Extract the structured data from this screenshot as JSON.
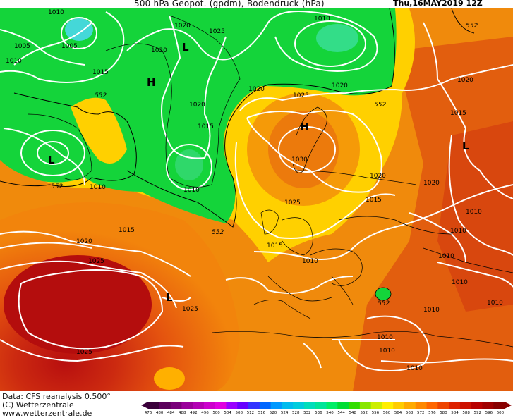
{
  "header": {
    "title": "500 hPa Geopot. (gpdm), Bodendruck (hPa)",
    "date": "Thu,16MAY2019 12Z"
  },
  "footer": {
    "data_line": "Data: CFS reanalysis 0.500°",
    "copyright": "(C) Wetterzentrale",
    "url": "www.wetterzentrale.de"
  },
  "legend": {
    "values": [
      "476",
      "480",
      "484",
      "488",
      "492",
      "496",
      "500",
      "504",
      "508",
      "512",
      "516",
      "520",
      "524",
      "528",
      "532",
      "536",
      "540",
      "544",
      "548",
      "552",
      "556",
      "560",
      "564",
      "568",
      "572",
      "576",
      "580",
      "584",
      "588",
      "592",
      "596",
      "600"
    ],
    "colors": [
      "#3a003a",
      "#5a005a",
      "#7a007a",
      "#9a009a",
      "#b300b3",
      "#cc00cc",
      "#e000e0",
      "#9900ff",
      "#6600ff",
      "#3333ff",
      "#0066ff",
      "#0099ff",
      "#00bbee",
      "#00ccdd",
      "#00ddbb",
      "#00e599",
      "#00ee66",
      "#00dd33",
      "#33dd00",
      "#88e600",
      "#ccee00",
      "#ffee00",
      "#ffcc00",
      "#ffaa00",
      "#ff8800",
      "#ff6600",
      "#ee4400",
      "#dd2200",
      "#cc1100",
      "#b80000",
      "#a00000",
      "#880000"
    ]
  },
  "map": {
    "pressure_labels": [
      {
        "text": "1010",
        "id": "p1"
      },
      {
        "text": "1005",
        "id": "p2"
      },
      {
        "text": "1005",
        "id": "p3"
      },
      {
        "text": "1010",
        "id": "p4"
      },
      {
        "text": "1015",
        "id": "p5"
      },
      {
        "text": "1020",
        "id": "p6"
      },
      {
        "text": "1020",
        "id": "p7"
      },
      {
        "text": "1025",
        "id": "p8"
      },
      {
        "text": "1020",
        "id": "p9"
      },
      {
        "text": "1015",
        "id": "p10"
      },
      {
        "text": "1020",
        "id": "p11"
      },
      {
        "text": "1025",
        "id": "p12"
      },
      {
        "text": "1010",
        "id": "p13"
      },
      {
        "text": "1020",
        "id": "p14"
      },
      {
        "text": "1020",
        "id": "p15"
      },
      {
        "text": "1015",
        "id": "p16"
      },
      {
        "text": "1010",
        "id": "p17"
      },
      {
        "text": "1030",
        "id": "p18"
      },
      {
        "text": "1020",
        "id": "p19"
      },
      {
        "text": "1015",
        "id": "p20"
      },
      {
        "text": "1025",
        "id": "p21"
      },
      {
        "text": "1010",
        "id": "p22"
      },
      {
        "text": "1015",
        "id": "p23"
      },
      {
        "text": "1010",
        "id": "p24"
      },
      {
        "text": "1020",
        "id": "p25"
      },
      {
        "text": "1025",
        "id": "p26"
      },
      {
        "text": "1025",
        "id": "p27"
      },
      {
        "text": "1010",
        "id": "p28"
      },
      {
        "text": "1010",
        "id": "p29"
      },
      {
        "text": "1010",
        "id": "p30"
      },
      {
        "text": "1010",
        "id": "p31"
      },
      {
        "text": "1010",
        "id": "p32"
      },
      {
        "text": "1025",
        "id": "p33"
      },
      {
        "text": "1015",
        "id": "p34"
      },
      {
        "text": "1010",
        "id": "p35"
      },
      {
        "text": "1010",
        "id": "p36"
      },
      {
        "text": "1010",
        "id": "p37"
      },
      {
        "text": "1020",
        "id": "p38"
      },
      {
        "text": "1010",
        "id": "p39"
      }
    ],
    "geopot_labels": [
      {
        "text": "552",
        "id": "g1"
      },
      {
        "text": "552",
        "id": "g2"
      },
      {
        "text": "552",
        "id": "g3"
      },
      {
        "text": "552",
        "id": "g4"
      },
      {
        "text": "552",
        "id": "g5"
      },
      {
        "text": "552",
        "id": "g6"
      }
    ],
    "centers": [
      {
        "text": "L",
        "id": "c1"
      },
      {
        "text": "H",
        "id": "c2"
      },
      {
        "text": "L",
        "id": "c3"
      },
      {
        "text": "H",
        "id": "c4"
      },
      {
        "text": "L",
        "id": "c5"
      },
      {
        "text": "L",
        "id": "c6"
      }
    ]
  }
}
